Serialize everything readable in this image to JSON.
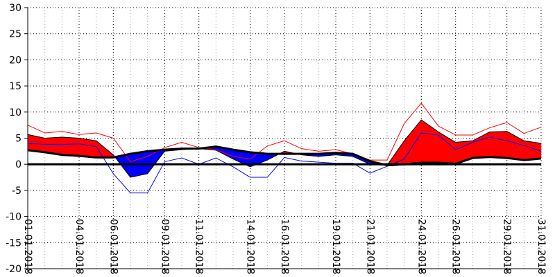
{
  "chart_data": {
    "type": "area",
    "title": "",
    "xlabel": "",
    "ylabel": "",
    "ylim": [
      -20,
      30
    ],
    "yticks": [
      30,
      25,
      20,
      15,
      10,
      5,
      0,
      -5,
      -10,
      -15,
      -20
    ],
    "xlim": [
      "2018-01-01",
      "2018-01-31"
    ],
    "x_tick_labels": [
      "01.01.2018",
      "04.01.2018",
      "06.01.2018",
      "09.01.2018",
      "11.01.2018",
      "14.01.2018",
      "16.01.2018",
      "19.01.2018",
      "21.01.2018",
      "24.01.2018",
      "26.01.2018",
      "29.01.2018",
      "31.01.2018"
    ],
    "grid": true,
    "colors": {
      "warm": "#ff0000",
      "cold": "#0000ff",
      "mean": "#000000",
      "zero": "#000000",
      "grid": "#000000"
    },
    "x": [
      "2018-01-01",
      "2018-01-02",
      "2018-01-03",
      "2018-01-04",
      "2018-01-05",
      "2018-01-06",
      "2018-01-07",
      "2018-01-08",
      "2018-01-09",
      "2018-01-10",
      "2018-01-11",
      "2018-01-12",
      "2018-01-13",
      "2018-01-14",
      "2018-01-15",
      "2018-01-16",
      "2018-01-17",
      "2018-01-18",
      "2018-01-19",
      "2018-01-20",
      "2018-01-21",
      "2018-01-22",
      "2018-01-23",
      "2018-01-24",
      "2018-01-25",
      "2018-01-26",
      "2018-01-27",
      "2018-01-28",
      "2018-01-29",
      "2018-01-30",
      "2018-01-31"
    ],
    "series": [
      {
        "role": "upper-thin",
        "values": [
          7.5,
          6.0,
          6.3,
          5.7,
          6.0,
          5.0,
          0.5,
          1.5,
          3.2,
          4.2,
          3.2,
          2.8,
          1.5,
          1.0,
          3.5,
          4.5,
          3.0,
          2.5,
          2.8,
          2.0,
          0.8,
          0.8,
          7.8,
          11.7,
          7.3,
          5.6,
          5.6,
          7.0,
          8.0,
          5.9,
          7.1
        ]
      },
      {
        "role": "actual",
        "values": [
          5.7,
          5.0,
          5.2,
          5.0,
          4.5,
          1.8,
          -2.5,
          -1.8,
          2.5,
          2.8,
          3.0,
          2.7,
          1.0,
          -0.5,
          0.8,
          2.5,
          1.8,
          1.5,
          1.8,
          1.5,
          0.0,
          -0.2,
          4.5,
          8.5,
          6.2,
          4.2,
          4.5,
          6.2,
          6.3,
          4.5,
          4.0
        ]
      },
      {
        "role": "mean",
        "values": [
          2.7,
          2.3,
          1.8,
          1.6,
          1.3,
          1.3,
          2.0,
          2.5,
          2.8,
          3.0,
          3.0,
          3.4,
          2.8,
          2.3,
          2.0,
          2.0,
          2.0,
          2.0,
          2.2,
          2.0,
          0.6,
          -0.2,
          0.0,
          0.3,
          0.3,
          0.1,
          1.2,
          1.4,
          1.2,
          0.8,
          1.1
        ]
      },
      {
        "role": "lower-thin",
        "values": [
          4.0,
          3.8,
          3.8,
          3.9,
          3.4,
          -1.8,
          -5.5,
          -5.5,
          0.5,
          1.2,
          0.0,
          1.2,
          -0.5,
          -2.5,
          -2.5,
          1.3,
          0.6,
          0.4,
          0.2,
          0.2,
          -1.7,
          -0.4,
          1.0,
          6.0,
          5.6,
          2.8,
          4.2,
          5.2,
          4.5,
          3.6,
          2.5
        ]
      }
    ]
  }
}
